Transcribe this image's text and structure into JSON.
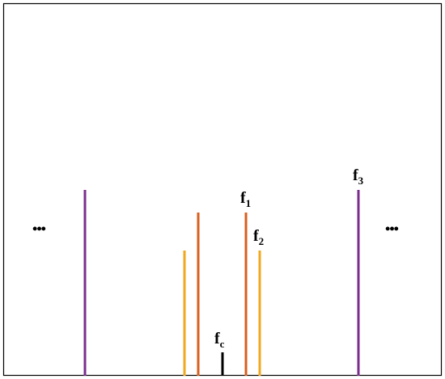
{
  "labels": [
    {
      "main": "f",
      "sub": "1"
    },
    {
      "main": "f",
      "sub": "2"
    },
    {
      "main": "f",
      "sub": "3"
    },
    {
      "main": "f",
      "sub": "c"
    }
  ],
  "ellipsis_left": "•••",
  "ellipsis_right": "•••"
}
